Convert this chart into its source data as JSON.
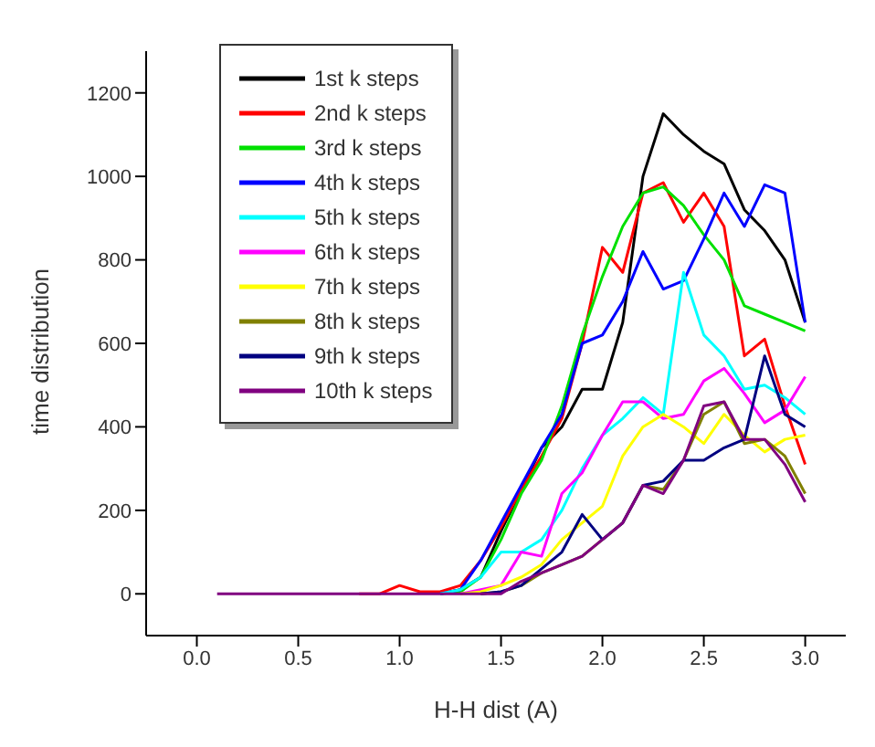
{
  "chart_data": {
    "type": "line",
    "xlabel": "H-H dist (A)",
    "ylabel": "time distribution",
    "x": [
      0.1,
      0.2,
      0.3,
      0.4,
      0.5,
      0.6,
      0.7,
      0.8,
      0.9,
      1.0,
      1.1,
      1.2,
      1.3,
      1.4,
      1.5,
      1.6,
      1.7,
      1.8,
      1.9,
      2.0,
      2.1,
      2.2,
      2.3,
      2.4,
      2.5,
      2.6,
      2.7,
      2.8,
      2.9,
      3.0
    ],
    "series": [
      {
        "name": "1st k steps",
        "color": "#000000",
        "values": [
          null,
          null,
          null,
          null,
          null,
          null,
          null,
          null,
          null,
          null,
          null,
          0,
          10,
          40,
          150,
          250,
          350,
          400,
          490,
          490,
          650,
          1000,
          1150,
          1100,
          1060,
          1030,
          920,
          870,
          800,
          650
        ]
      },
      {
        "name": "2nd k steps",
        "color": "#ff0000",
        "values": [
          null,
          null,
          null,
          null,
          null,
          null,
          null,
          0,
          0,
          20,
          5,
          5,
          20,
          80,
          160,
          250,
          330,
          420,
          600,
          830,
          770,
          960,
          985,
          890,
          960,
          880,
          570,
          610,
          450,
          310
        ]
      },
      {
        "name": "3rd k steps",
        "color": "#00e000",
        "values": [
          null,
          null,
          null,
          null,
          null,
          null,
          null,
          null,
          null,
          null,
          null,
          0,
          5,
          40,
          130,
          240,
          320,
          450,
          620,
          760,
          880,
          960,
          975,
          930,
          860,
          800,
          690,
          670,
          650,
          630
        ]
      },
      {
        "name": "4th k steps",
        "color": "#0000ff",
        "values": [
          null,
          null,
          null,
          null,
          null,
          null,
          null,
          null,
          null,
          null,
          null,
          0,
          10,
          80,
          170,
          260,
          350,
          430,
          600,
          620,
          700,
          820,
          730,
          750,
          850,
          960,
          880,
          980,
          960,
          650
        ]
      },
      {
        "name": "5th k steps",
        "color": "#00ffff",
        "values": [
          null,
          null,
          null,
          null,
          null,
          null,
          null,
          null,
          null,
          null,
          null,
          0,
          10,
          40,
          100,
          100,
          130,
          200,
          300,
          380,
          420,
          470,
          430,
          770,
          620,
          570,
          490,
          500,
          470,
          430
        ]
      },
      {
        "name": "6th k steps",
        "color": "#ff00ff",
        "values": [
          null,
          null,
          null,
          null,
          null,
          null,
          null,
          null,
          null,
          null,
          null,
          null,
          0,
          10,
          20,
          100,
          90,
          240,
          290,
          380,
          460,
          460,
          420,
          430,
          510,
          540,
          480,
          410,
          440,
          520
        ]
      },
      {
        "name": "7th k steps",
        "color": "#ffff00",
        "values": [
          null,
          null,
          null,
          null,
          null,
          null,
          null,
          null,
          null,
          null,
          null,
          null,
          0,
          5,
          20,
          40,
          70,
          130,
          170,
          210,
          330,
          400,
          430,
          400,
          360,
          430,
          380,
          340,
          370,
          380
        ]
      },
      {
        "name": "8th k steps",
        "color": "#808000",
        "values": [
          null,
          null,
          null,
          null,
          null,
          null,
          null,
          null,
          null,
          null,
          null,
          null,
          null,
          0,
          5,
          20,
          50,
          70,
          90,
          130,
          170,
          260,
          250,
          320,
          430,
          460,
          360,
          370,
          330,
          240
        ]
      },
      {
        "name": "9th k steps",
        "color": "#000080",
        "values": [
          null,
          null,
          null,
          null,
          null,
          null,
          null,
          null,
          null,
          null,
          null,
          null,
          null,
          0,
          5,
          20,
          60,
          100,
          190,
          130,
          170,
          260,
          270,
          320,
          320,
          350,
          370,
          570,
          430,
          400
        ]
      },
      {
        "name": "10th k steps",
        "color": "#800080",
        "values": [
          0,
          0,
          0,
          0,
          0,
          0,
          0,
          0,
          0,
          0,
          0,
          0,
          0,
          0,
          0,
          30,
          50,
          70,
          90,
          130,
          170,
          260,
          240,
          320,
          450,
          460,
          370,
          370,
          310,
          220
        ]
      }
    ],
    "xlim": [
      -0.25,
      3.2
    ],
    "xticks": [
      {
        "value": 0,
        "label": "0.0"
      },
      0.5,
      {
        "value": 1,
        "label": "1.0"
      },
      1.5,
      {
        "value": 2,
        "label": "2.0"
      },
      2.5,
      {
        "value": 3,
        "label": "3.0"
      }
    ],
    "ylim": [
      -100,
      1300
    ],
    "yticks": [
      0,
      200,
      400,
      600,
      800,
      1000,
      1200
    ],
    "grid": false,
    "legend": "top left",
    "marker": "none",
    "line_style": "solid"
  }
}
